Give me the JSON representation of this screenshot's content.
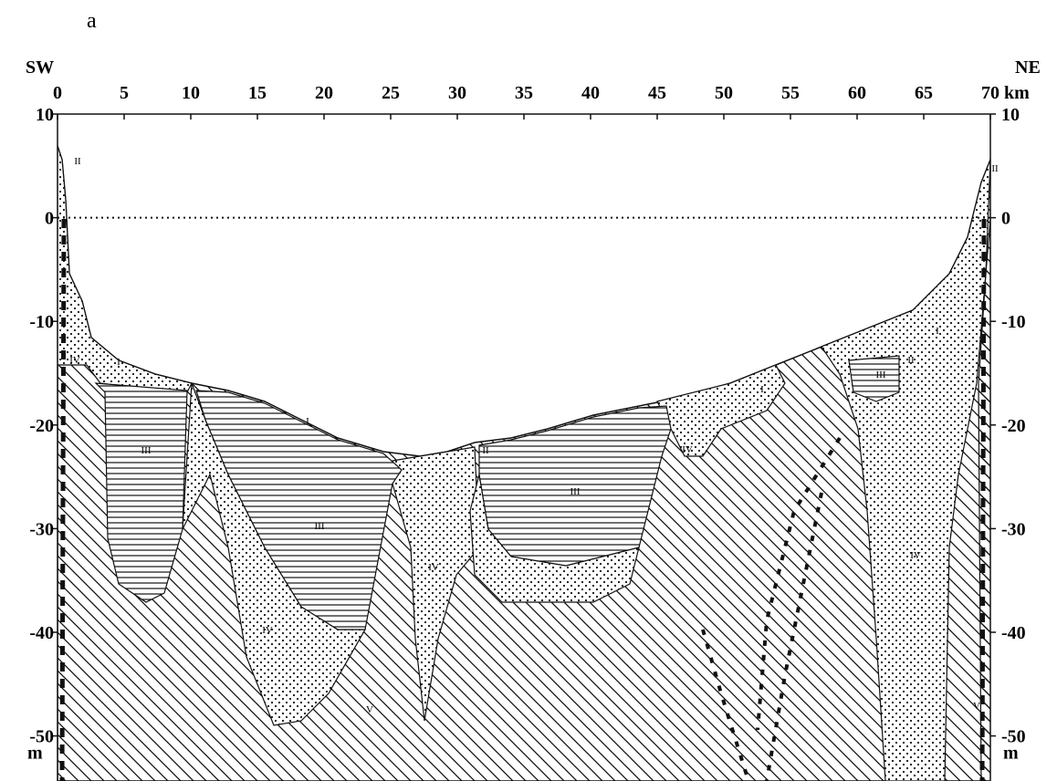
{
  "panel_label": "a",
  "chart_data": {
    "type": "cross-section",
    "x_start_label": "SW",
    "x_end_label": "NE",
    "y_unit": "m",
    "xlim": [
      0,
      70
    ],
    "ylim": [
      -54,
      10
    ],
    "xticks": [
      0,
      5,
      10,
      15,
      20,
      25,
      30,
      35,
      40,
      45,
      50,
      55,
      60,
      65,
      {
        "value": 70,
        "label": "70 km"
      }
    ],
    "yticks": [
      10,
      0,
      -10,
      -20,
      -30,
      -40,
      -50
    ],
    "sea_level": 0,
    "units": [
      "I",
      "II",
      "III",
      "IV",
      "V"
    ]
  }
}
